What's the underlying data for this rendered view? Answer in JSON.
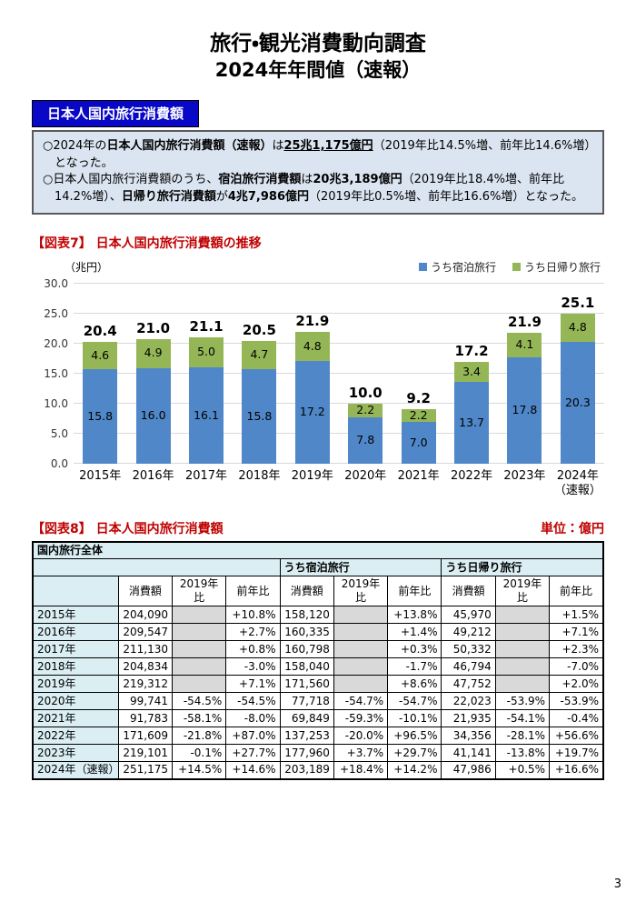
{
  "title": {
    "line1": "旅行・観光消費動向調査",
    "line2": "2024年年間値（速報）"
  },
  "section_banner": "日本人国内旅行消費額",
  "summary": {
    "bullets": [
      [
        {
          "t": "○2024年の"
        },
        {
          "t": "日本人国内旅行消費額（速報）",
          "b": true
        },
        {
          "t": "は"
        },
        {
          "t": "25兆1,175億円",
          "b": true,
          "u": true
        },
        {
          "t": "（2019年比14.5%増、前年比14.6%増）となった。"
        }
      ],
      [
        {
          "t": "○日本人国内旅行消費額のうち、"
        },
        {
          "t": "宿泊旅行消費額",
          "b": true
        },
        {
          "t": "は"
        },
        {
          "t": "20兆3,189億円",
          "b": true
        },
        {
          "t": "（2019年比18.4%増、前年比14.2%増）、"
        },
        {
          "t": "日帰り旅行消費額",
          "b": true
        },
        {
          "t": "が"
        },
        {
          "t": "4兆7,986億円",
          "b": true
        },
        {
          "t": "（2019年比0.5%増、前年比16.6%増）となった。"
        }
      ]
    ]
  },
  "figure7": {
    "label": "【図表7】",
    "title": "日本人国内旅行消費額の推移"
  },
  "chart_data": {
    "type": "bar",
    "stacked": true,
    "title": "日本人国内旅行消費額の推移",
    "ylabel": "（兆円）",
    "ylim": [
      0,
      30
    ],
    "yticks": [
      "0.0",
      "5.0",
      "10.0",
      "15.0",
      "20.0",
      "25.0",
      "30.0"
    ],
    "grid": true,
    "legend_position": "top-right",
    "categories": [
      "2015年",
      "2016年",
      "2017年",
      "2018年",
      "2019年",
      "2020年",
      "2021年",
      "2022年",
      "2023年",
      "2024年\n（速報）"
    ],
    "series": [
      {
        "name": "うち宿泊旅行",
        "color": "#5087C8",
        "values": [
          15.8,
          16.0,
          16.1,
          15.8,
          17.2,
          7.8,
          7.0,
          13.7,
          17.8,
          20.3
        ]
      },
      {
        "name": "うち日帰り旅行",
        "color": "#94B656",
        "values": [
          4.6,
          4.9,
          5.0,
          4.7,
          4.8,
          2.2,
          2.2,
          3.4,
          4.1,
          4.8
        ]
      }
    ],
    "totals": [
      20.4,
      21.0,
      21.1,
      20.5,
      21.9,
      10.0,
      9.2,
      17.2,
      21.9,
      25.1
    ]
  },
  "figure8": {
    "label": "【図表8】",
    "title": "日本人国内旅行消費額",
    "unit": "単位：億円",
    "table": {
      "top_header": "国内旅行全体",
      "group_headers": [
        "うち宿泊旅行",
        "うち日帰り旅行"
      ],
      "col_headers": [
        "消費額",
        "2019年比",
        "前年比"
      ],
      "rows": [
        {
          "year": "2015年",
          "cells": [
            "204,090",
            null,
            "+10.8%",
            "158,120",
            null,
            "+13.8%",
            "45,970",
            null,
            "+1.5%"
          ]
        },
        {
          "year": "2016年",
          "cells": [
            "209,547",
            null,
            "+2.7%",
            "160,335",
            null,
            "+1.4%",
            "49,212",
            null,
            "+7.1%"
          ]
        },
        {
          "year": "2017年",
          "cells": [
            "211,130",
            null,
            "+0.8%",
            "160,798",
            null,
            "+0.3%",
            "50,332",
            null,
            "+2.3%"
          ]
        },
        {
          "year": "2018年",
          "cells": [
            "204,834",
            null,
            "-3.0%",
            "158,040",
            null,
            "-1.7%",
            "46,794",
            null,
            "-7.0%"
          ]
        },
        {
          "year": "2019年",
          "cells": [
            "219,312",
            null,
            "+7.1%",
            "171,560",
            null,
            "+8.6%",
            "47,752",
            null,
            "+2.0%"
          ]
        },
        {
          "year": "2020年",
          "cells": [
            "99,741",
            "-54.5%",
            "-54.5%",
            "77,718",
            "-54.7%",
            "-54.7%",
            "22,023",
            "-53.9%",
            "-53.9%"
          ]
        },
        {
          "year": "2021年",
          "cells": [
            "91,783",
            "-58.1%",
            "-8.0%",
            "69,849",
            "-59.3%",
            "-10.1%",
            "21,935",
            "-54.1%",
            "-0.4%"
          ]
        },
        {
          "year": "2022年",
          "cells": [
            "171,609",
            "-21.8%",
            "+87.0%",
            "137,253",
            "-20.0%",
            "+96.5%",
            "34,356",
            "-28.1%",
            "+56.6%"
          ]
        },
        {
          "year": "2023年",
          "cells": [
            "219,101",
            "-0.1%",
            "+27.7%",
            "177,960",
            "+3.7%",
            "+29.7%",
            "41,141",
            "-13.8%",
            "+19.7%"
          ]
        },
        {
          "year": "2024年（速報）",
          "cells": [
            "251,175",
            "+14.5%",
            "+14.6%",
            "203,189",
            "+18.4%",
            "+14.2%",
            "47,986",
            "+0.5%",
            "+16.6%"
          ]
        }
      ]
    }
  },
  "colors": {
    "banner_blue": "#0808C6",
    "heading_red": "#C00000",
    "bar_stay_blue": "#5087C8",
    "bar_daytrip_green": "#94B656",
    "table_header_cyan": "#DAEEF3",
    "na_gray": "#D9D9D9",
    "summary_box_bg": "#DBE5F1"
  },
  "page_number": "3"
}
